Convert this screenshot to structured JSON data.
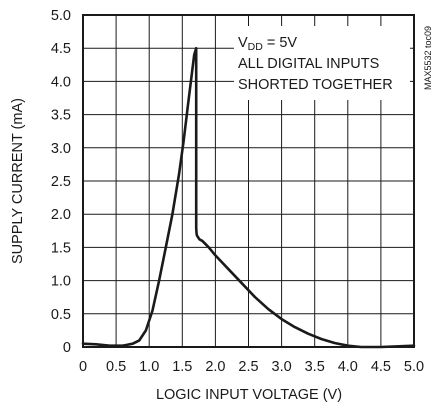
{
  "chart_data": {
    "type": "line",
    "title": "",
    "xlabel": "LOGIC INPUT VOLTAGE (V)",
    "ylabel": "SUPPLY CURRENT (mA)",
    "xlim": [
      0,
      5.0
    ],
    "ylim": [
      0,
      5.0
    ],
    "x_ticks": [
      "0",
      "0.5",
      "1.0",
      "1.5",
      "2.0",
      "2.5",
      "3.0",
      "3.5",
      "4.0",
      "4.5",
      "5.0"
    ],
    "y_ticks": [
      "0",
      "0.5",
      "1.0",
      "1.5",
      "2.0",
      "2.5",
      "3.0",
      "3.5",
      "4.0",
      "4.5",
      "5.0"
    ],
    "grid": true,
    "annotation": {
      "vdd_main": "V",
      "vdd_sub": "DD",
      "vdd_rest": " = 5V",
      "line2": "ALL DIGITAL INPUTS",
      "line3": "SHORTED TOGETHER"
    },
    "figure_code": "MAX5532 toc09",
    "series": [
      {
        "x": [
          0.0,
          0.2,
          0.4,
          0.6,
          0.75,
          0.85,
          0.95,
          1.05,
          1.15,
          1.25,
          1.35,
          1.45,
          1.52,
          1.58,
          1.63,
          1.68,
          1.71,
          1.71,
          1.715,
          1.72,
          1.74,
          1.76,
          1.8,
          1.85,
          1.9,
          2.0,
          2.2,
          2.4,
          2.6,
          2.8,
          3.0,
          3.2,
          3.4,
          3.6,
          3.8,
          4.0,
          4.2,
          4.5,
          5.0
        ],
        "y": [
          0.05,
          0.04,
          0.02,
          0.02,
          0.05,
          0.1,
          0.25,
          0.55,
          1.0,
          1.5,
          2.0,
          2.6,
          3.1,
          3.6,
          4.0,
          4.4,
          4.5,
          1.8,
          1.72,
          1.68,
          1.65,
          1.62,
          1.6,
          1.55,
          1.5,
          1.38,
          1.17,
          0.96,
          0.75,
          0.57,
          0.42,
          0.3,
          0.2,
          0.12,
          0.06,
          0.02,
          0.0,
          0.0,
          0.02
        ]
      }
    ]
  }
}
